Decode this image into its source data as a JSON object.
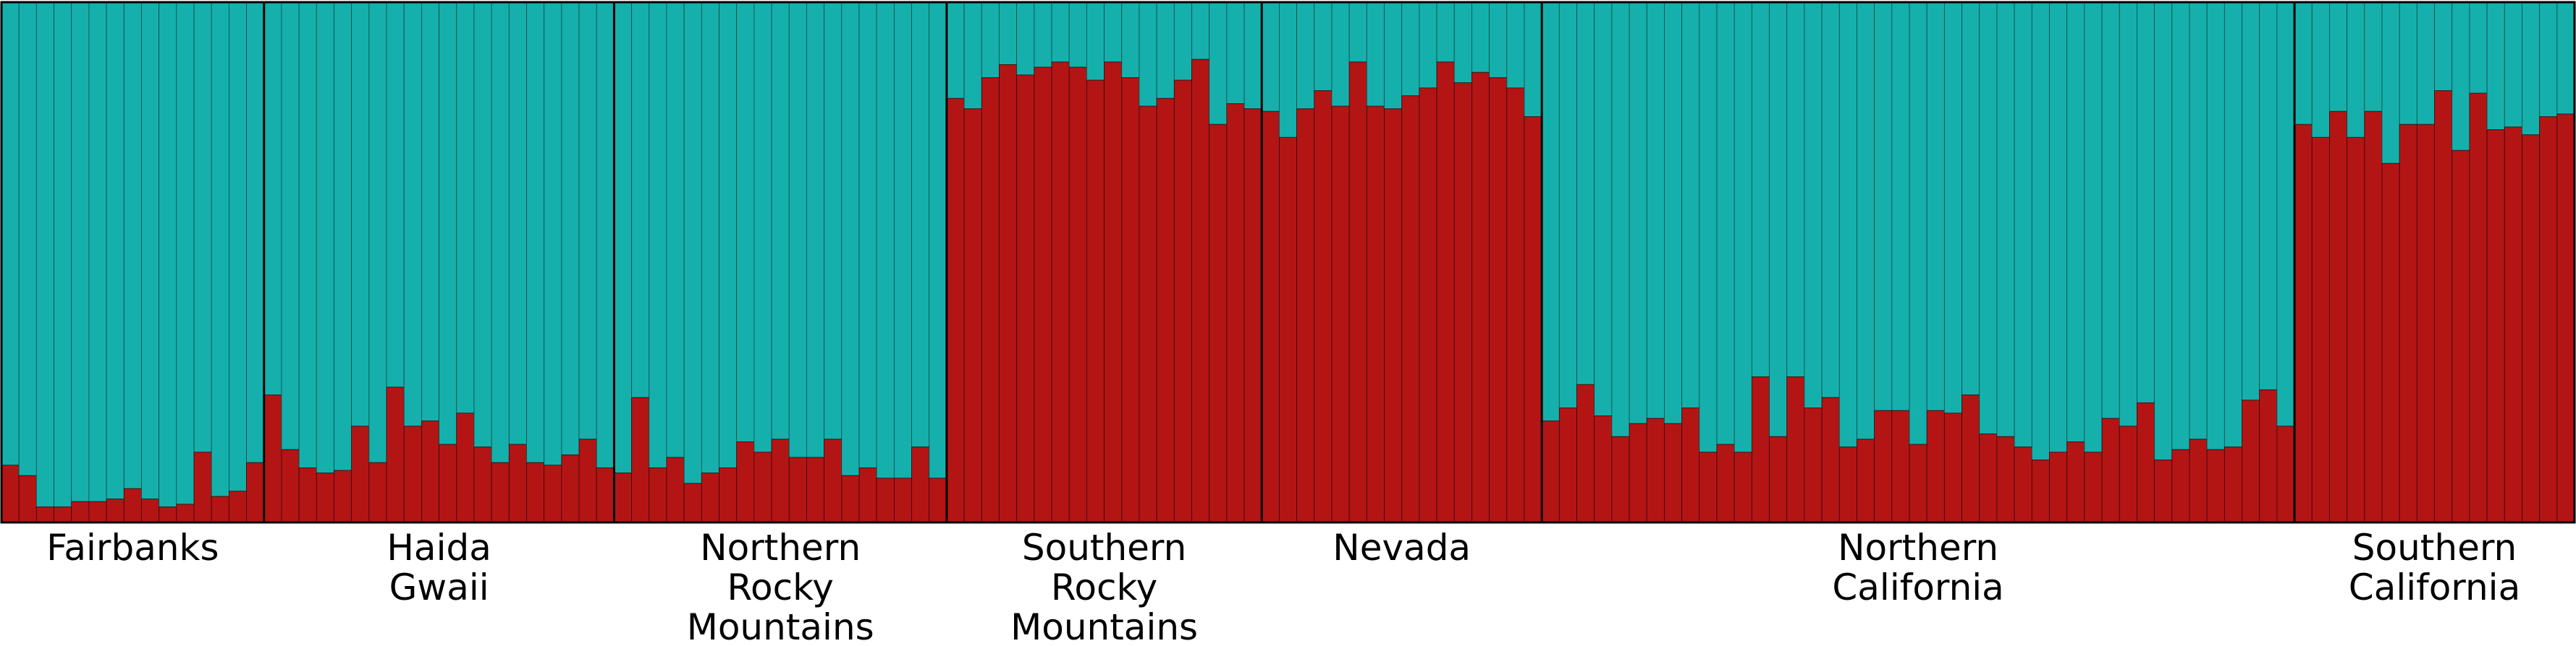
{
  "chart_data": {
    "type": "bar",
    "stacked": true,
    "ylim": [
      0,
      1
    ],
    "grid": false,
    "colors": {
      "cluster1": "#b31515",
      "cluster2": "#15b0ac"
    },
    "groups": [
      {
        "label_lines": [
          "Fairbanks"
        ],
        "values": [
          0.11,
          0.09,
          0.03,
          0.03,
          0.04,
          0.04,
          0.045,
          0.065,
          0.045,
          0.03,
          0.035,
          0.135,
          0.05,
          0.06,
          0.115
        ]
      },
      {
        "label_lines": [
          "Haida",
          "Gwaii"
        ],
        "values": [
          0.245,
          0.14,
          0.105,
          0.095,
          0.1,
          0.185,
          0.115,
          0.26,
          0.185,
          0.195,
          0.15,
          0.21,
          0.145,
          0.115,
          0.15,
          0.115,
          0.11,
          0.13,
          0.16,
          0.105
        ]
      },
      {
        "label_lines": [
          "Northern",
          "Rocky",
          "Mountains"
        ],
        "values": [
          0.095,
          0.24,
          0.105,
          0.125,
          0.075,
          0.095,
          0.105,
          0.155,
          0.135,
          0.16,
          0.125,
          0.125,
          0.16,
          0.09,
          0.105,
          0.085,
          0.085,
          0.145,
          0.085
        ]
      },
      {
        "label_lines": [
          "Southern",
          "Rocky",
          "Mountains"
        ],
        "values": [
          0.815,
          0.795,
          0.855,
          0.88,
          0.86,
          0.875,
          0.885,
          0.875,
          0.85,
          0.885,
          0.855,
          0.8,
          0.815,
          0.85,
          0.89,
          0.765,
          0.805,
          0.795
        ]
      },
      {
        "label_lines": [
          "Nevada"
        ],
        "values": [
          0.79,
          0.74,
          0.795,
          0.83,
          0.8,
          0.885,
          0.8,
          0.795,
          0.82,
          0.835,
          0.885,
          0.845,
          0.865,
          0.855,
          0.835,
          0.78
        ]
      },
      {
        "label_lines": [
          "Northern",
          "California"
        ],
        "values": [
          0.195,
          0.22,
          0.265,
          0.205,
          0.165,
          0.19,
          0.2,
          0.19,
          0.22,
          0.135,
          0.15,
          0.135,
          0.28,
          0.165,
          0.28,
          0.22,
          0.24,
          0.145,
          0.16,
          0.215,
          0.215,
          0.15,
          0.215,
          0.21,
          0.245,
          0.17,
          0.165,
          0.145,
          0.12,
          0.135,
          0.155,
          0.135,
          0.2,
          0.185,
          0.23,
          0.12,
          0.14,
          0.16,
          0.14,
          0.145,
          0.235,
          0.255,
          0.185
        ]
      },
      {
        "label_lines": [
          "Southern",
          "California"
        ],
        "values": [
          0.765,
          0.74,
          0.79,
          0.74,
          0.79,
          0.69,
          0.765,
          0.765,
          0.83,
          0.715,
          0.825,
          0.755,
          0.76,
          0.745,
          0.78,
          0.785
        ]
      }
    ]
  }
}
